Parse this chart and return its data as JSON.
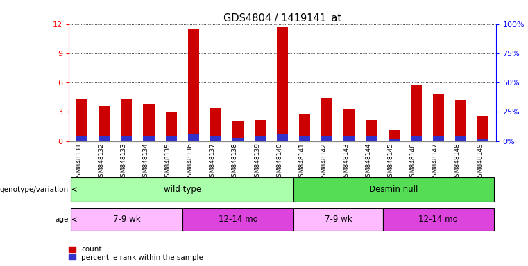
{
  "title": "GDS4804 / 1419141_at",
  "samples": [
    "GSM848131",
    "GSM848132",
    "GSM848133",
    "GSM848134",
    "GSM848135",
    "GSM848136",
    "GSM848137",
    "GSM848138",
    "GSM848139",
    "GSM848140",
    "GSM848141",
    "GSM848142",
    "GSM848143",
    "GSM848144",
    "GSM848145",
    "GSM848146",
    "GSM848147",
    "GSM848148",
    "GSM848149"
  ],
  "count_values": [
    4.3,
    3.6,
    4.3,
    3.8,
    3.0,
    11.5,
    3.4,
    2.0,
    2.2,
    11.7,
    2.8,
    4.4,
    3.2,
    2.2,
    1.2,
    5.7,
    4.9,
    4.2,
    2.6
  ],
  "percentile_values": [
    0.55,
    0.55,
    0.55,
    0.55,
    0.55,
    0.7,
    0.55,
    0.3,
    0.55,
    0.7,
    0.55,
    0.55,
    0.55,
    0.55,
    0.2,
    0.55,
    0.55,
    0.55,
    0.2
  ],
  "ylim": [
    0,
    12
  ],
  "yticks": [
    0,
    3,
    6,
    9,
    12
  ],
  "y2ticks": [
    0,
    25,
    50,
    75,
    100
  ],
  "y2labels": [
    "0%",
    "25%",
    "50%",
    "75%",
    "100%"
  ],
  "bar_color": "#cc0000",
  "percentile_color": "#3333cc",
  "bar_width": 0.5,
  "genotype_groups": [
    {
      "label": "wild type",
      "start": 0,
      "end": 10,
      "color": "#aaffaa"
    },
    {
      "label": "Desmin null",
      "start": 10,
      "end": 19,
      "color": "#55dd55"
    }
  ],
  "age_groups": [
    {
      "label": "7-9 wk",
      "start": 0,
      "end": 5,
      "color": "#ffbbff"
    },
    {
      "label": "12-14 mo",
      "start": 5,
      "end": 10,
      "color": "#dd44dd"
    },
    {
      "label": "7-9 wk",
      "start": 10,
      "end": 14,
      "color": "#ffbbff"
    },
    {
      "label": "12-14 mo",
      "start": 14,
      "end": 19,
      "color": "#dd44dd"
    }
  ],
  "legend_count_label": "count",
  "legend_percentile_label": "percentile rank within the sample",
  "genotype_row_label": "genotype/variation",
  "age_row_label": "age",
  "fig_width": 7.61,
  "fig_height": 3.84,
  "dpi": 100
}
